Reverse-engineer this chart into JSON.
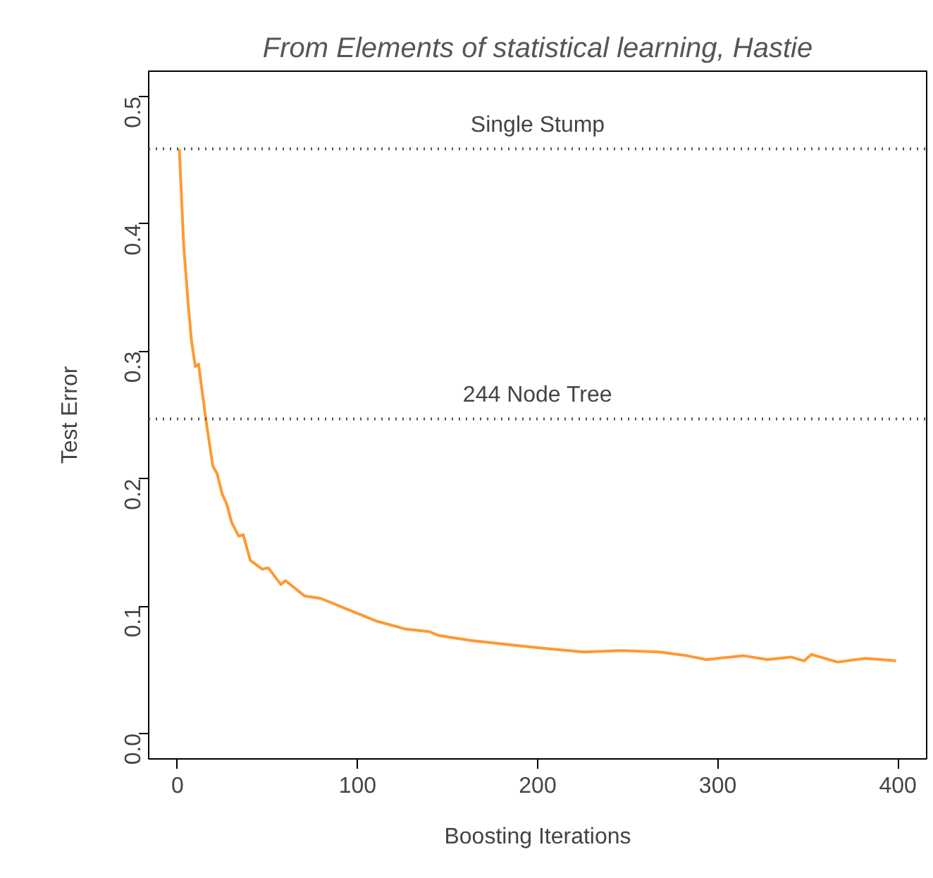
{
  "chart_data": {
    "type": "line",
    "title": "From Elements of statistical learning, Hastie",
    "xlabel": "Boosting Iterations",
    "ylabel": "Test Error",
    "x": [
      1,
      3.4,
      6,
      7.8,
      9.9,
      11.7,
      15.7,
      19.6,
      22,
      24.8,
      27.4,
      30,
      33.9,
      36.5,
      40.4,
      47,
      50.4,
      57.4,
      60,
      70.5,
      79.6,
      95.2,
      110.9,
      126.6,
      139.6,
      144.8,
      163,
      189,
      202,
      225.7,
      246.6,
      267.5,
      283,
      293.5,
      314.4,
      327.5,
      340.5,
      348,
      352,
      366.6,
      382,
      399
    ],
    "series": [
      {
        "color": "#ff9933",
        "values": [
          0.459,
          0.384,
          0.336,
          0.308,
          0.288,
          0.29,
          0.247,
          0.21,
          0.204,
          0.188,
          0.18,
          0.166,
          0.155,
          0.156,
          0.136,
          0.129,
          0.13,
          0.117,
          0.12,
          0.108,
          0.106,
          0.097,
          0.088,
          0.082,
          0.08,
          0.077,
          0.073,
          0.069,
          0.067,
          0.064,
          0.065,
          0.064,
          0.061,
          0.058,
          0.061,
          0.058,
          0.06,
          0.057,
          0.062,
          0.056,
          0.059,
          0.057
        ]
      }
    ],
    "xlim": [
      -16,
      416
    ],
    "ylim": [
      -0.02,
      0.52
    ],
    "xticks": [
      0,
      100,
      200,
      300,
      400
    ],
    "yticks": [
      {
        "value": 0,
        "label": "0.0"
      },
      0.1,
      0.2,
      0.3,
      0.4,
      0.5
    ],
    "ref_lines": [
      {
        "axis": "y",
        "value": 0.459,
        "label": "Single Stump",
        "color": "#555555",
        "line_style": "dotted"
      },
      {
        "axis": "y",
        "value": 0.247,
        "label": "244 Node Tree",
        "color": "#555555",
        "line_style": "dotted"
      }
    ],
    "grid": false
  }
}
